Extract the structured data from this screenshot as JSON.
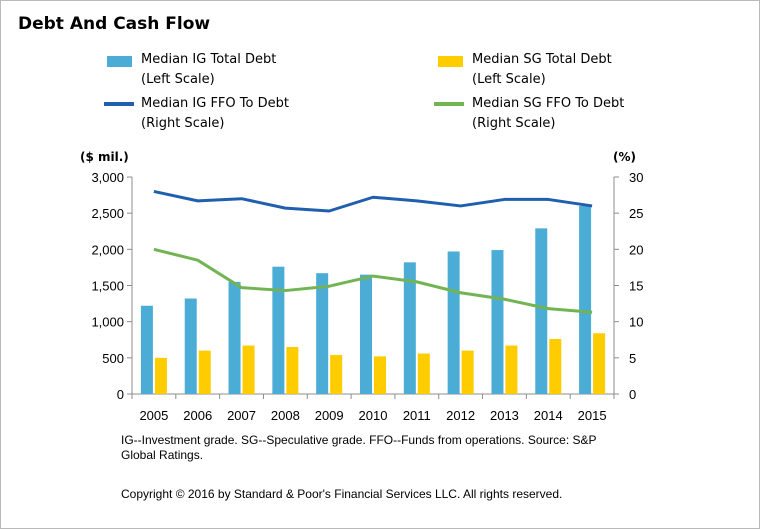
{
  "title": "Debt And Cash Flow",
  "legend": [
    {
      "line1": "Median IG Total Debt",
      "line2": "(Left Scale)",
      "color": "#4bacd6",
      "kind": "bar"
    },
    {
      "line1": "Median SG Total Debt",
      "line2": "(Left Scale)",
      "color": "#ffcc00",
      "kind": "bar"
    },
    {
      "line1": "Median IG FFO To Debt",
      "line2": "(Right Scale)",
      "color": "#1f5fad",
      "kind": "line"
    },
    {
      "line1": "Median SG FFO To Debt",
      "line2": "(Right Scale)",
      "color": "#72b454",
      "kind": "line"
    }
  ],
  "left_axis_unit": "($ mil.)",
  "right_axis_unit": "(%)",
  "footnote": "IG--Investment grade. SG--Speculative grade. FFO--Funds from operations.  Source: S&P Global Ratings.",
  "copyright": "Copyright © 2016 by Standard & Poor's Financial Services LLC. All rights reserved.",
  "chart_data": {
    "type": "bar",
    "categories": [
      "2005",
      "2006",
      "2007",
      "2008",
      "2009",
      "2010",
      "2011",
      "2012",
      "2013",
      "2014",
      "2015"
    ],
    "left_axis": {
      "ylim": [
        0,
        3000
      ],
      "ticks": [
        0,
        500,
        1000,
        1500,
        2000,
        2500,
        3000
      ],
      "tick_labels": [
        "0",
        "500",
        "1,000",
        "1,500",
        "2,000",
        "2,500",
        "3,000"
      ]
    },
    "right_axis": {
      "ylim": [
        0,
        30
      ],
      "ticks": [
        0,
        5,
        10,
        15,
        20,
        25,
        30
      ],
      "tick_labels": [
        "0",
        "5",
        "10",
        "15",
        "20",
        "25",
        "30"
      ]
    },
    "series": [
      {
        "name": "Median IG Total Debt",
        "type": "bar",
        "axis": "left",
        "color": "#4bacd6",
        "values": [
          1220,
          1320,
          1550,
          1760,
          1670,
          1650,
          1820,
          1970,
          1990,
          2290,
          2600
        ]
      },
      {
        "name": "Median SG Total Debt",
        "type": "bar",
        "axis": "left",
        "color": "#ffcc00",
        "values": [
          500,
          600,
          670,
          650,
          540,
          520,
          560,
          600,
          670,
          760,
          840
        ]
      },
      {
        "name": "Median IG FFO To Debt",
        "type": "line",
        "axis": "right",
        "color": "#1f5fad",
        "values": [
          28.0,
          26.7,
          27.0,
          25.7,
          25.3,
          27.2,
          26.7,
          26.0,
          26.9,
          26.9,
          26.0
        ]
      },
      {
        "name": "Median SG FFO To Debt",
        "type": "line",
        "axis": "right",
        "color": "#72b454",
        "values": [
          20.0,
          18.5,
          14.7,
          14.3,
          14.9,
          16.3,
          15.5,
          14.0,
          13.1,
          11.8,
          11.3
        ]
      }
    ],
    "grid": false,
    "legend_position": "top"
  }
}
